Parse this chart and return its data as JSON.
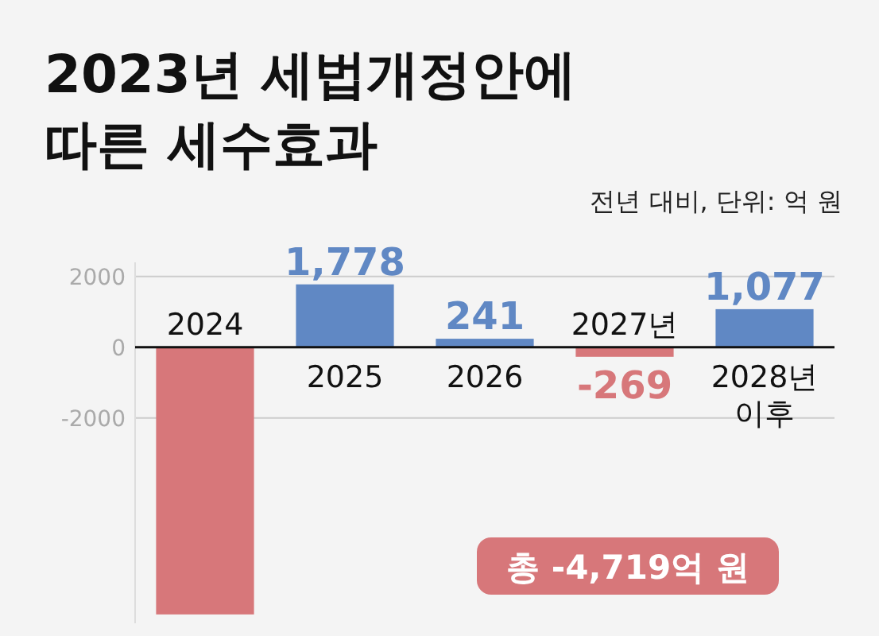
{
  "chart_data": {
    "type": "bar",
    "title": "2023년 세법개정안에 따른 세수효과",
    "subtitle": "전년 대비, 단위: 억 원",
    "categories": [
      "2024",
      "2025",
      "2026",
      "2027년",
      "2028년 이후"
    ],
    "values": [
      -7550,
      1778,
      241,
      -269,
      1077
    ],
    "colors": [
      "#d7777a",
      "#6088c4",
      "#6088c4",
      "#d7777a",
      "#6088c4"
    ],
    "value_labels": [
      null,
      "1,778",
      "241",
      "-269",
      "1,077"
    ],
    "ylim": [
      -7800,
      2400
    ],
    "yticks": [
      2000,
      0,
      -2000
    ],
    "grid": "y",
    "legend": false,
    "annotations": [
      "총 -4,719억 원"
    ]
  }
}
